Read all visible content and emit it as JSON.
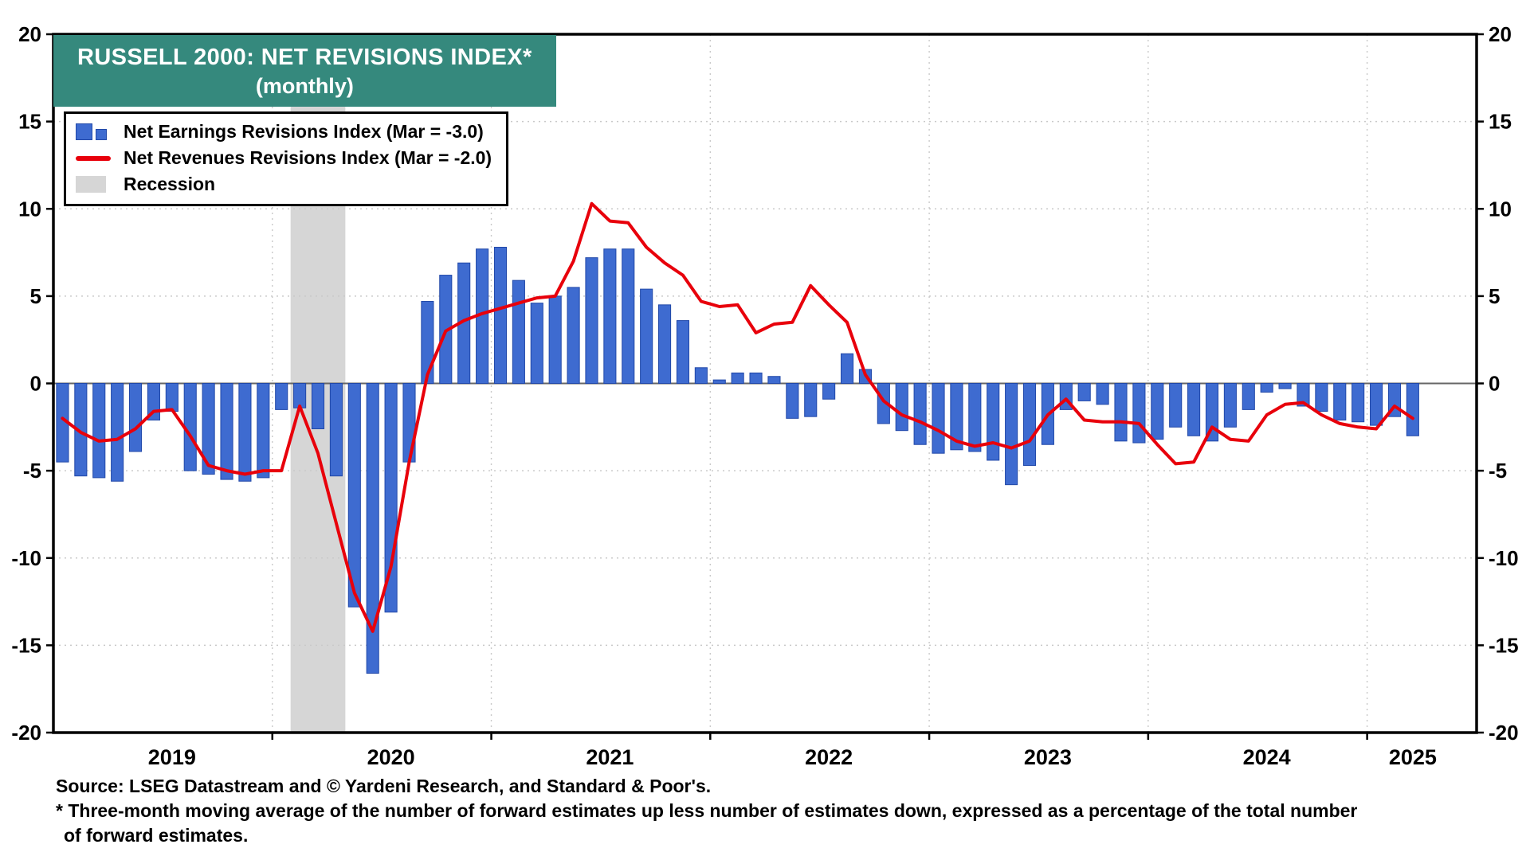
{
  "title": {
    "line1": "RUSSELL 2000: NET REVISIONS INDEX*",
    "line2": "(monthly)"
  },
  "legend": {
    "earnings": "Net Earnings Revisions Index (Mar = -3.0)",
    "revenues": "Net Revenues Revisions Index (Mar = -2.0)",
    "recession": "Recession"
  },
  "footer": {
    "source": "Source: LSEG Datastream and © Yardeni Research, and Standard & Poor's.",
    "footnote1": "* Three-month moving average of the number of forward estimates up less number of estimates down, expressed as a percentage of the total number",
    "footnote2": "of forward estimates."
  },
  "colors": {
    "bar_fill": "#3E6BD0",
    "bar_edge": "#2148A8",
    "line": "#E8000B",
    "recession": "#D6D6D6",
    "grid": "#C9C9C9",
    "title_bg": "#35897D",
    "frame": "#000000",
    "zero_line": "#666666"
  },
  "chart_data": {
    "type": "bar",
    "title": "RUSSELL 2000: NET REVISIONS INDEX* (monthly)",
    "xlabel": "",
    "ylabel": "",
    "ylim": [
      -20,
      20
    ],
    "yticks": [
      20,
      15,
      10,
      5,
      0,
      -5,
      -10,
      -15,
      -20
    ],
    "grid": "dotted",
    "legend_position": "top-left",
    "axis_months_total": 78,
    "year_boundaries": [
      12,
      24,
      36,
      48,
      60,
      72
    ],
    "year_ticks": [
      {
        "label": "2019",
        "month_index": 6.5
      },
      {
        "label": "2020",
        "month_index": 18.5
      },
      {
        "label": "2021",
        "month_index": 30.5
      },
      {
        "label": "2022",
        "month_index": 42.5
      },
      {
        "label": "2023",
        "month_index": 54.5
      },
      {
        "label": "2024",
        "month_index": 66.5
      },
      {
        "label": "2025",
        "month_index": 74.5
      }
    ],
    "recession_bands": [
      {
        "start": "2020-02",
        "end": "2020-04",
        "start_index": 13,
        "end_index": 16
      }
    ],
    "categories": [
      "2019-01",
      "2019-02",
      "2019-03",
      "2019-04",
      "2019-05",
      "2019-06",
      "2019-07",
      "2019-08",
      "2019-09",
      "2019-10",
      "2019-11",
      "2019-12",
      "2020-01",
      "2020-02",
      "2020-03",
      "2020-04",
      "2020-05",
      "2020-06",
      "2020-07",
      "2020-08",
      "2020-09",
      "2020-10",
      "2020-11",
      "2020-12",
      "2021-01",
      "2021-02",
      "2021-03",
      "2021-04",
      "2021-05",
      "2021-06",
      "2021-07",
      "2021-08",
      "2021-09",
      "2021-10",
      "2021-11",
      "2021-12",
      "2022-01",
      "2022-02",
      "2022-03",
      "2022-04",
      "2022-05",
      "2022-06",
      "2022-07",
      "2022-08",
      "2022-09",
      "2022-10",
      "2022-11",
      "2022-12",
      "2023-01",
      "2023-02",
      "2023-03",
      "2023-04",
      "2023-05",
      "2023-06",
      "2023-07",
      "2023-08",
      "2023-09",
      "2023-10",
      "2023-11",
      "2023-12",
      "2024-01",
      "2024-02",
      "2024-03",
      "2024-04",
      "2024-05",
      "2024-06",
      "2024-07",
      "2024-08",
      "2024-09",
      "2024-10",
      "2024-11",
      "2024-12",
      "2025-01",
      "2025-02",
      "2025-03"
    ],
    "series": [
      {
        "name": "Net Earnings Revisions Index",
        "type": "bar",
        "color": "#3E6BD0",
        "latest_label": "Mar = -3.0",
        "values": [
          -4.5,
          -5.3,
          -5.4,
          -5.6,
          -3.9,
          -2.1,
          -1.6,
          -5.0,
          -5.2,
          -5.5,
          -5.6,
          -5.4,
          -1.5,
          -1.4,
          -2.6,
          -5.3,
          -12.8,
          -16.6,
          -13.1,
          -4.5,
          4.7,
          6.2,
          6.9,
          7.7,
          7.8,
          5.9,
          4.6,
          5.0,
          5.5,
          7.2,
          7.7,
          7.7,
          5.4,
          4.5,
          3.6,
          0.9,
          0.2,
          0.6,
          0.6,
          0.4,
          -2.0,
          -1.9,
          -0.9,
          1.7,
          0.8,
          -2.3,
          -2.7,
          -3.5,
          -4.0,
          -3.8,
          -3.9,
          -4.4,
          -5.8,
          -4.7,
          -3.5,
          -1.5,
          -1.0,
          -1.2,
          -3.3,
          -3.4,
          -3.2,
          -2.5,
          -3.0,
          -3.3,
          -2.5,
          -1.5,
          -0.5,
          -0.3,
          -1.3,
          -1.6,
          -2.1,
          -2.2,
          -2.4,
          -1.9,
          -3.0
        ]
      },
      {
        "name": "Net Revenues Revisions Index",
        "type": "line",
        "color": "#E8000B",
        "latest_label": "Mar = -2.0",
        "values": [
          -2.0,
          -2.8,
          -3.3,
          -3.2,
          -2.6,
          -1.6,
          -1.5,
          -3.0,
          -4.7,
          -5.0,
          -5.2,
          -5.0,
          -5.0,
          -1.3,
          -4.0,
          -8.0,
          -12.0,
          -14.2,
          -10.5,
          -4.5,
          0.5,
          3.0,
          3.6,
          4.0,
          4.3,
          4.6,
          4.9,
          5.0,
          7.0,
          10.3,
          9.3,
          9.2,
          7.8,
          6.9,
          6.2,
          4.7,
          4.4,
          4.5,
          2.9,
          3.4,
          3.5,
          5.6,
          4.5,
          3.5,
          0.5,
          -1.0,
          -1.8,
          -2.2,
          -2.7,
          -3.3,
          -3.6,
          -3.4,
          -3.7,
          -3.3,
          -1.8,
          -0.9,
          -2.1,
          -2.2,
          -2.2,
          -2.3,
          -3.5,
          -4.6,
          -4.5,
          -2.5,
          -3.2,
          -3.3,
          -1.8,
          -1.2,
          -1.1,
          -1.8,
          -2.3,
          -2.5,
          -2.6,
          -1.3,
          -2.0
        ]
      }
    ]
  }
}
